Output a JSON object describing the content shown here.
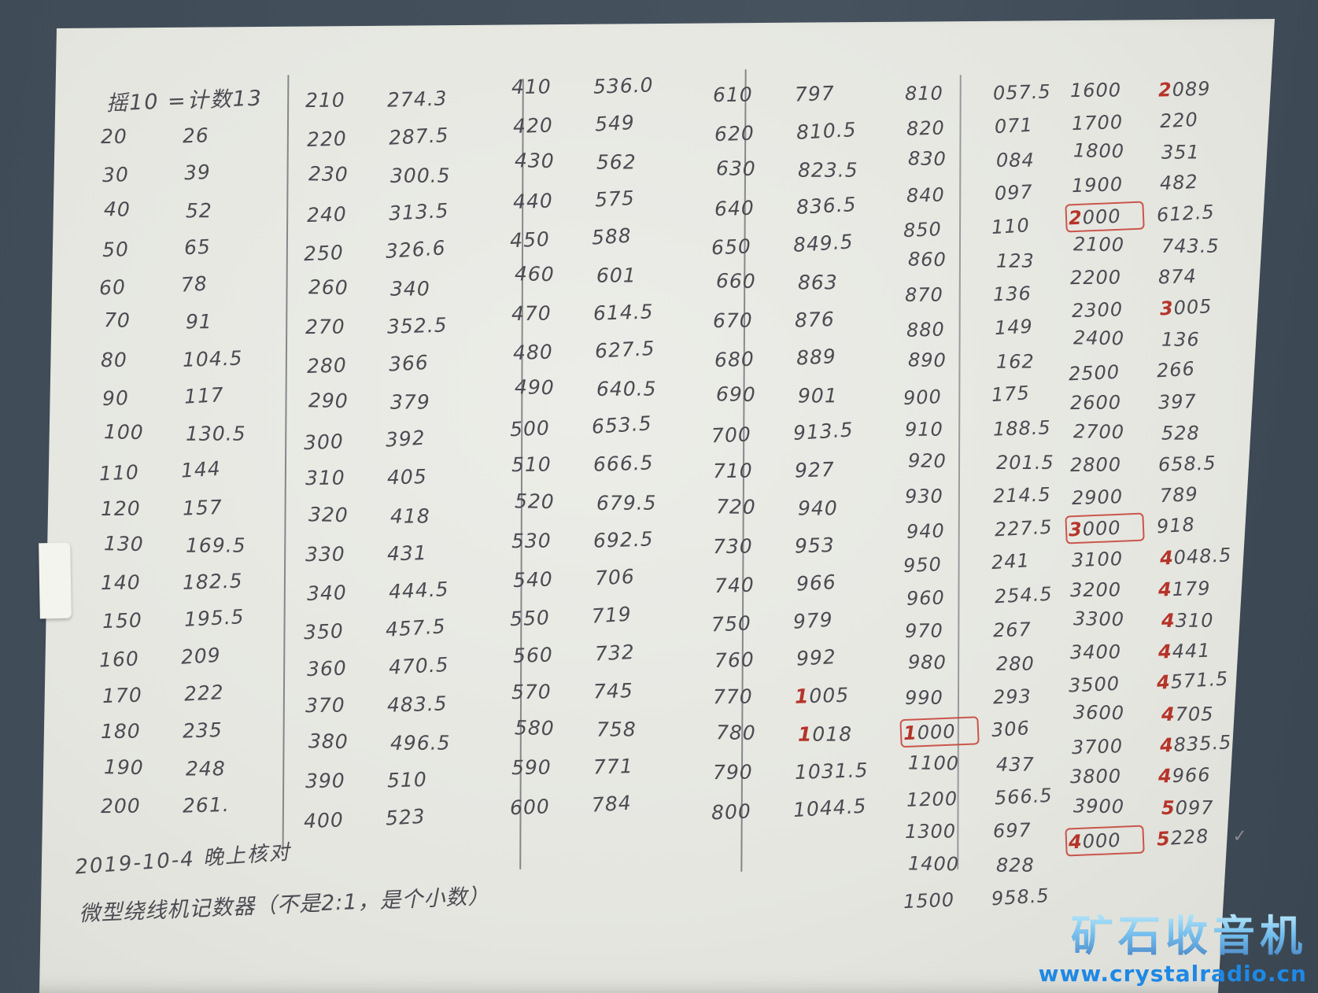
{
  "colors": {
    "background": "#3f4b57",
    "page": "#e5e6e0",
    "ink": "#4b4b52",
    "red_mark": "#b5342a",
    "watermark_blue": "#1e88e5"
  },
  "header": {
    "label": "摇10 =计数13"
  },
  "notes": {
    "date_note": "2019-10-4 晚上核对",
    "bottom_note": "微型绕线机记数器（不是2:1，是个小数）"
  },
  "watermark": {
    "title": "矿石收音机",
    "url": "www.crystalradio.cn"
  },
  "table": {
    "columns": [
      {
        "rows": [
          [
            "20",
            "26"
          ],
          [
            "30",
            "39"
          ],
          [
            "40",
            "52"
          ],
          [
            "50",
            "65"
          ],
          [
            "60",
            "78"
          ],
          [
            "70",
            "91"
          ],
          [
            "80",
            "104.5"
          ],
          [
            "90",
            "117"
          ],
          [
            "100",
            "130.5"
          ],
          [
            "110",
            "144"
          ],
          [
            "120",
            "157"
          ],
          [
            "130",
            "169.5"
          ],
          [
            "140",
            "182.5"
          ],
          [
            "150",
            "195.5"
          ],
          [
            "160",
            "209"
          ],
          [
            "170",
            "222"
          ],
          [
            "180",
            "235"
          ],
          [
            "190",
            "248"
          ],
          [
            "200",
            "261."
          ]
        ]
      },
      {
        "rows": [
          [
            "210",
            "274.3"
          ],
          [
            "220",
            "287.5"
          ],
          [
            "230",
            "300.5"
          ],
          [
            "240",
            "313.5"
          ],
          [
            "250",
            "326.6"
          ],
          [
            "260",
            "340"
          ],
          [
            "270",
            "352.5"
          ],
          [
            "280",
            "366"
          ],
          [
            "290",
            "379"
          ],
          [
            "300",
            "392"
          ],
          [
            "310",
            "405"
          ],
          [
            "320",
            "418"
          ],
          [
            "330",
            "431"
          ],
          [
            "340",
            "444.5"
          ],
          [
            "350",
            "457.5"
          ],
          [
            "360",
            "470.5"
          ],
          [
            "370",
            "483.5"
          ],
          [
            "380",
            "496.5"
          ],
          [
            "390",
            "510"
          ],
          [
            "400",
            "523"
          ]
        ]
      },
      {
        "rows": [
          [
            "410",
            "536.0"
          ],
          [
            "420",
            "549"
          ],
          [
            "430",
            "562"
          ],
          [
            "440",
            "575"
          ],
          [
            "450",
            "588"
          ],
          [
            "460",
            "601"
          ],
          [
            "470",
            "614.5"
          ],
          [
            "480",
            "627.5"
          ],
          [
            "490",
            "640.5"
          ],
          [
            "500",
            "653.5"
          ],
          [
            "510",
            "666.5"
          ],
          [
            "520",
            "679.5"
          ],
          [
            "530",
            "692.5"
          ],
          [
            "540",
            "706"
          ],
          [
            "550",
            "719"
          ],
          [
            "560",
            "732"
          ],
          [
            "570",
            "745"
          ],
          [
            "580",
            "758"
          ],
          [
            "590",
            "771"
          ],
          [
            "600",
            "784"
          ]
        ]
      },
      {
        "rows": [
          [
            "610",
            "797"
          ],
          [
            "620",
            "810.5"
          ],
          [
            "630",
            "823.5"
          ],
          [
            "640",
            "836.5"
          ],
          [
            "650",
            "849.5"
          ],
          [
            "660",
            "863"
          ],
          [
            "670",
            "876"
          ],
          [
            "680",
            "889"
          ],
          [
            "690",
            "901"
          ],
          [
            "700",
            "913.5"
          ],
          [
            "710",
            "927"
          ],
          [
            "720",
            "940"
          ],
          [
            "730",
            "953"
          ],
          [
            "740",
            "966"
          ],
          [
            "750",
            "979"
          ],
          [
            "760",
            "992"
          ],
          [
            "770",
            "1005",
            {
              "vr": 1
            }
          ],
          [
            "780",
            "1018",
            {
              "vr": 1
            }
          ],
          [
            "790",
            "1031.5"
          ],
          [
            "800",
            "1044.5"
          ]
        ]
      },
      {
        "rows": [
          [
            "810",
            "057.5"
          ],
          [
            "820",
            "071"
          ],
          [
            "830",
            "084"
          ],
          [
            "840",
            "097"
          ],
          [
            "850",
            "110"
          ],
          [
            "860",
            "123"
          ],
          [
            "870",
            "136"
          ],
          [
            "880",
            "149"
          ],
          [
            "890",
            "162"
          ],
          [
            "900",
            "175"
          ],
          [
            "910",
            "188.5"
          ],
          [
            "920",
            "201.5"
          ],
          [
            "930",
            "214.5"
          ],
          [
            "940",
            "227.5"
          ],
          [
            "950",
            "241"
          ],
          [
            "960",
            "254.5"
          ],
          [
            "970",
            "267"
          ],
          [
            "980",
            "280"
          ],
          [
            "990",
            "293"
          ],
          [
            "1000",
            "306",
            {
              "box": true,
              "dr": 1
            }
          ],
          [
            "1100",
            "437"
          ],
          [
            "1200",
            "566.5"
          ],
          [
            "1300",
            "697"
          ],
          [
            "1400",
            "828"
          ],
          [
            "1500",
            "958.5"
          ]
        ]
      },
      {
        "rows": [
          [
            "1600",
            "2089",
            {
              "vr": 1
            }
          ],
          [
            "1700",
            "220"
          ],
          [
            "1800",
            "351"
          ],
          [
            "1900",
            "482"
          ],
          [
            "2000",
            "612.5",
            {
              "box": true,
              "dr": 1
            }
          ],
          [
            "2100",
            "743.5"
          ],
          [
            "2200",
            "874"
          ],
          [
            "2300",
            "3005",
            {
              "vr": 1
            }
          ],
          [
            "2400",
            "136"
          ],
          [
            "2500",
            "266"
          ],
          [
            "2600",
            "397"
          ],
          [
            "2700",
            "528"
          ],
          [
            "2800",
            "658.5"
          ],
          [
            "2900",
            "789"
          ],
          [
            "3000",
            "918",
            {
              "box": true,
              "dr": 1
            }
          ],
          [
            "3100",
            "4048.5",
            {
              "vr": 1
            }
          ],
          [
            "3200",
            "4179",
            {
              "vr": 1
            }
          ],
          [
            "3300",
            "4310",
            {
              "vr": 1
            }
          ],
          [
            "3400",
            "4441",
            {
              "vr": 1
            }
          ],
          [
            "3500",
            "4571.5",
            {
              "vr": 1
            }
          ],
          [
            "3600",
            "4705",
            {
              "vr": 1
            }
          ],
          [
            "3700",
            "4835.5",
            {
              "vr": 1
            }
          ],
          [
            "3800",
            "4966",
            {
              "vr": 1
            }
          ],
          [
            "3900",
            "5097",
            {
              "vr": 1
            }
          ],
          [
            "4000",
            "5228",
            {
              "box": true,
              "dr": 1,
              "vr": 1,
              "check": true
            }
          ]
        ]
      }
    ]
  }
}
